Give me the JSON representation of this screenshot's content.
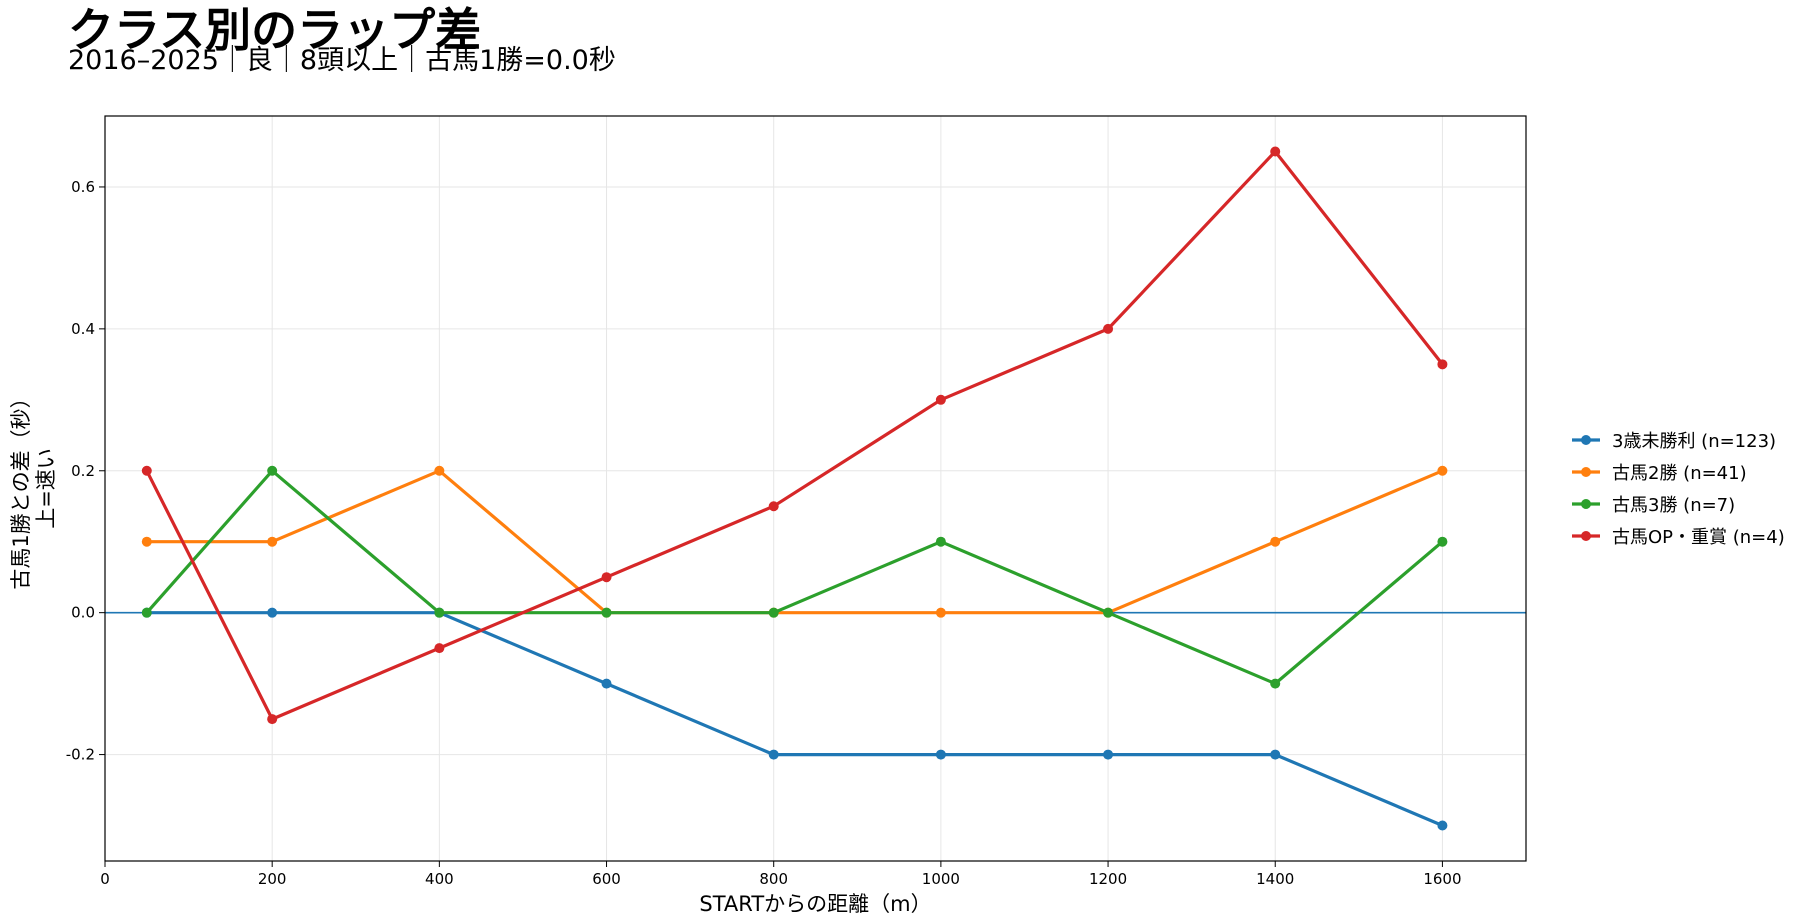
{
  "title": "クラス別のラップ差",
  "subtitle": "2016–2025｜良｜8頭以上｜古馬1勝=0.0秒",
  "chart_data": {
    "type": "line",
    "xlabel": "STARTからの距離（m）",
    "ylabel_lines": [
      "古馬1勝との差（秒）",
      "上=速い"
    ],
    "x": [
      50,
      200,
      400,
      600,
      800,
      1000,
      1200,
      1400,
      1600
    ],
    "xlim": [
      0,
      1700
    ],
    "ylim": [
      -0.35,
      0.7
    ],
    "xticks": [
      0,
      200,
      400,
      600,
      800,
      1000,
      1200,
      1400,
      1600
    ],
    "yticks": [
      -0.2,
      0.0,
      0.2,
      0.4,
      0.6
    ],
    "ytick_labels": [
      "-0.2",
      "0.0",
      "0.2",
      "0.4",
      "0.6"
    ],
    "grid": true,
    "reference_line": 0.0,
    "legend_position": "right",
    "series": [
      {
        "name": "3歳未勝利 (n=123)",
        "color": "#1f77b4",
        "values": [
          0.0,
          0.0,
          0.0,
          -0.1,
          -0.2,
          -0.2,
          -0.2,
          -0.2,
          -0.3
        ]
      },
      {
        "name": "古馬2勝 (n=41)",
        "color": "#ff7f0e",
        "values": [
          0.1,
          0.1,
          0.2,
          0.0,
          0.0,
          0.0,
          0.0,
          0.1,
          0.2
        ]
      },
      {
        "name": "古馬3勝 (n=7)",
        "color": "#2ca02c",
        "values": [
          0.0,
          0.2,
          0.0,
          0.0,
          0.0,
          0.1,
          0.0,
          -0.1,
          0.1
        ]
      },
      {
        "name": "古馬OP・重賞 (n=4)",
        "color": "#d62728",
        "values": [
          0.2,
          -0.15,
          -0.05,
          0.05,
          0.15,
          0.3,
          0.4,
          0.65,
          0.35
        ]
      }
    ]
  }
}
